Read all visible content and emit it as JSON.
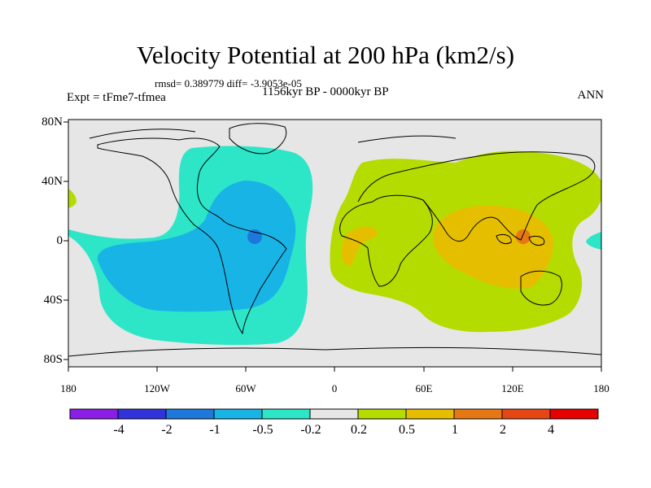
{
  "title": "Velocity Potential at 200 hPa (km2/s)",
  "stats": "rmsd= 0.389779 diff= -3.9053e-05",
  "experiment": "Expt = tFme7-tfmea",
  "period": "1156kyr BP - 0000kyr BP",
  "season": "ANN",
  "map": {
    "lon_labels": [
      "180",
      "120W",
      "60W",
      "0",
      "60E",
      "120E",
      "180"
    ],
    "lat_labels": [
      "80N",
      "40N",
      "0",
      "40S",
      "80S"
    ]
  },
  "colorbar": {
    "labels": [
      "-4",
      "-2",
      "-1",
      "-0.5",
      "-0.2",
      "0.2",
      "0.5",
      "1",
      "2",
      "4"
    ],
    "colors": [
      "#8a1ee6",
      "#3232dc",
      "#1e78dc",
      "#19b4e6",
      "#2de6c8",
      "#e6e6e6",
      "#b4dc00",
      "#e6be00",
      "#e67814",
      "#e64614",
      "#e60000"
    ]
  }
}
